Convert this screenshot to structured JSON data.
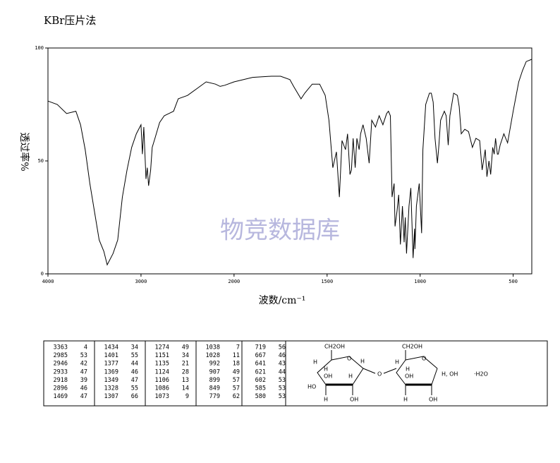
{
  "chart_data": {
    "type": "line",
    "title": "KBr压片法",
    "xlabel": "波数/cm⁻¹",
    "ylabel": "透过率%",
    "watermark": "物竞数据库",
    "x": [
      4000,
      3900,
      3800,
      3700,
      3650,
      3600,
      3550,
      3500,
      3450,
      3400,
      3363,
      3300,
      3250,
      3200,
      3150,
      3100,
      3050,
      3000,
      2985,
      2970,
      2946,
      2933,
      2918,
      2896,
      2880,
      2850,
      2800,
      2750,
      2700,
      2650,
      2600,
      2500,
      2400,
      2300,
      2200,
      2150,
      2100,
      2000,
      1900,
      1800,
      1750,
      1700,
      1680,
      1640,
      1620,
      1580,
      1540,
      1510,
      1490,
      1469,
      1450,
      1434,
      1420,
      1401,
      1390,
      1377,
      1369,
      1360,
      1349,
      1340,
      1328,
      1320,
      1307,
      1290,
      1274,
      1260,
      1240,
      1220,
      1200,
      1180,
      1170,
      1160,
      1151,
      1140,
      1135,
      1124,
      1115,
      1106,
      1095,
      1086,
      1080,
      1073,
      1060,
      1050,
      1038,
      1030,
      1028,
      1020,
      1005,
      992,
      985,
      970,
      950,
      940,
      930,
      920,
      907,
      899,
      890,
      870,
      860,
      849,
      840,
      820,
      800,
      790,
      779,
      760,
      740,
      719,
      700,
      680,
      667,
      650,
      641,
      630,
      621,
      610,
      602,
      595,
      585,
      580,
      570,
      550,
      530,
      500,
      470,
      450,
      430,
      400
    ],
    "values": [
      76.5,
      75,
      71,
      72,
      66,
      55,
      40,
      27.5,
      15,
      10,
      4,
      9,
      15,
      34,
      46,
      56,
      62,
      66,
      53,
      65,
      42,
      47,
      39,
      46,
      56,
      60,
      67,
      70,
      71,
      72,
      77.5,
      79,
      82,
      85,
      84,
      83,
      83.5,
      85,
      87,
      87.5,
      87.5,
      86,
      83,
      77.5,
      80,
      84,
      84,
      79,
      68,
      47,
      54,
      34,
      59,
      55,
      62,
      44,
      46,
      60,
      47,
      60,
      55,
      62,
      66,
      60,
      49,
      68,
      65,
      70,
      66,
      71,
      72,
      70,
      34,
      40,
      21,
      28,
      35,
      13,
      30,
      14,
      25,
      9,
      30,
      38,
      7,
      20,
      11,
      30,
      40,
      18,
      55,
      75,
      80,
      80,
      76,
      60,
      49,
      57,
      68,
      72,
      70,
      57,
      70,
      80,
      79,
      74,
      62,
      64,
      63,
      56,
      60,
      59,
      46,
      55,
      43,
      50,
      44,
      56,
      53,
      60,
      53,
      53,
      57,
      62,
      58,
      72,
      85,
      90,
      94,
      95
    ],
    "color": "#000000",
    "xlim": [
      4000,
      400
    ],
    "xbreak": 2000,
    "xticks": [
      4000,
      3000,
      2000,
      1500,
      1000,
      500
    ],
    "ylim": [
      0,
      100
    ],
    "yticks": [
      0,
      50,
      100
    ]
  },
  "table": {
    "rows": [
      [
        3363,
        4,
        1434,
        34,
        1274,
        49,
        1038,
        7,
        719,
        56
      ],
      [
        2985,
        53,
        1401,
        55,
        1151,
        34,
        1028,
        11,
        667,
        46
      ],
      [
        2946,
        42,
        1377,
        44,
        1135,
        21,
        992,
        18,
        641,
        43
      ],
      [
        2933,
        47,
        1369,
        46,
        1124,
        28,
        907,
        49,
        621,
        44
      ],
      [
        2918,
        39,
        1349,
        47,
        1106,
        13,
        899,
        57,
        602,
        53
      ],
      [
        2896,
        46,
        1328,
        55,
        1086,
        14,
        849,
        57,
        585,
        53
      ],
      [
        1469,
        47,
        1307,
        66,
        1073,
        9,
        779,
        62,
        580,
        53
      ]
    ]
  },
  "structure": {
    "labels": [
      "CH2OH",
      "H",
      "H",
      "OH",
      "HO",
      "H",
      "O",
      "H",
      "OH",
      "O",
      "CH2OH",
      "H",
      "H",
      "OH",
      "H",
      "O",
      "H",
      "OH",
      "H, OH",
      "·H2O"
    ]
  }
}
